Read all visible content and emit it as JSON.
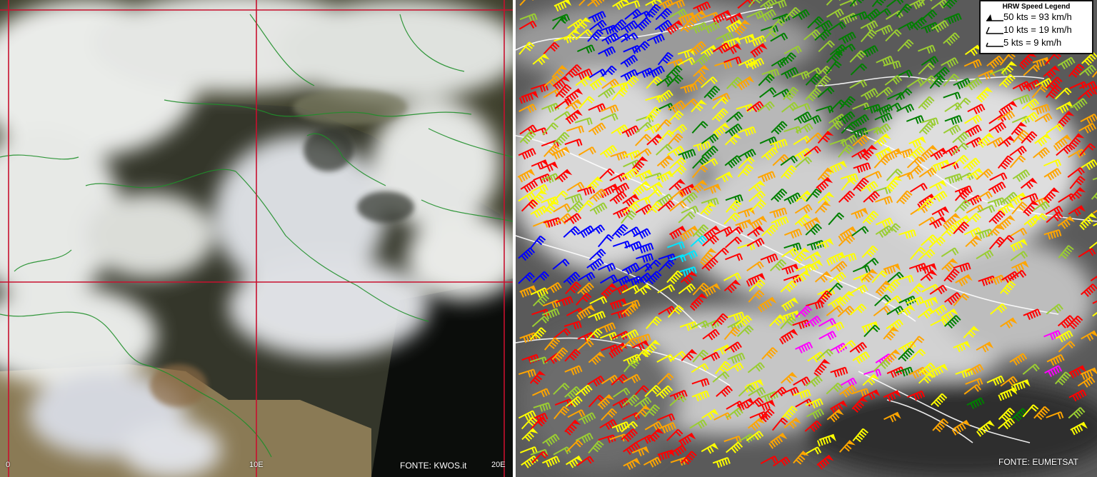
{
  "left_panel": {
    "credit": "FONTE: KWOS.it",
    "longitude_labels": [
      "0",
      "10E",
      "20E"
    ]
  },
  "right_panel": {
    "credit": "FONTE: EUMETSAT",
    "legend": {
      "title": "HRW Speed Legend",
      "entries": [
        {
          "label": "50 kts = 93 km/h",
          "symbol": "pennant-barb-icon"
        },
        {
          "label": "10 kts = 19 km/h",
          "symbol": "full-barb-icon"
        },
        {
          "label": "5 kts = 9 km/h",
          "symbol": "half-barb-icon"
        }
      ]
    },
    "barb_colors": {
      "slow": "#0000ff",
      "cyan": "#00e5ff",
      "green": "#008000",
      "olive": "#9acd32",
      "yellow": "#ffff00",
      "orange": "#ffa500",
      "red": "#ff0000",
      "magenta": "#ff00ff",
      "purple": "#8b008b"
    }
  },
  "colors": {
    "grid_line": "#c8102e",
    "border_left": "#1f8f2a",
    "border_right": "#ffffff"
  }
}
